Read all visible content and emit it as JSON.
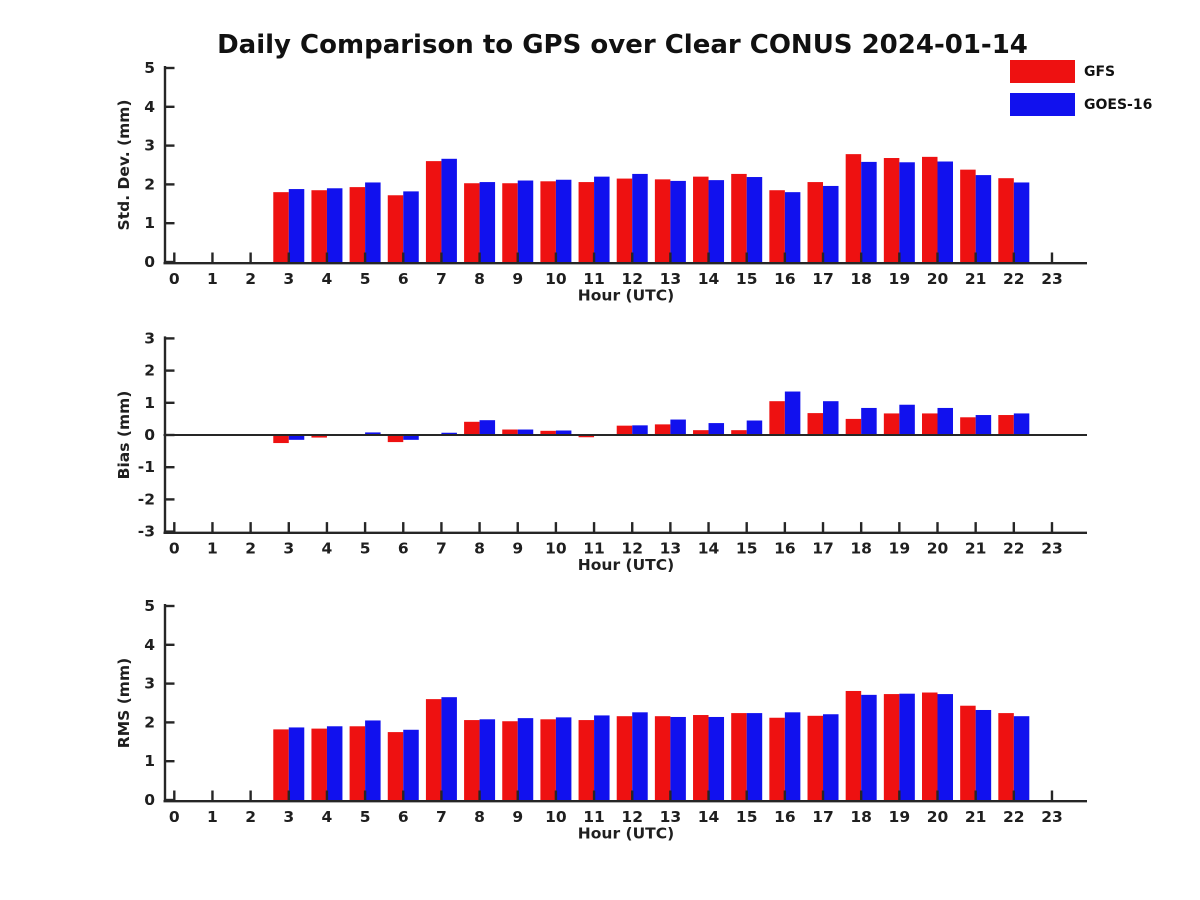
{
  "title": "Daily Comparison to GPS over Clear CONUS 2024-01-14",
  "legend": {
    "items": [
      {
        "label": "GFS",
        "color": "#ee1111"
      },
      {
        "label": "GOES-16",
        "color": "#1111ee"
      }
    ]
  },
  "colors": {
    "gfs": "#ee1111",
    "goes16": "#1111ee",
    "axis": "#262626",
    "text": "#111111"
  },
  "chart_data": [
    {
      "id": "std-dev",
      "type": "bar",
      "xlabel": "Hour (UTC)",
      "ylabel": "Std. Dev. (mm)",
      "ylim": [
        0,
        5
      ],
      "yticks": [
        0,
        1,
        2,
        3,
        4,
        5
      ],
      "x": [
        0,
        1,
        2,
        3,
        4,
        5,
        6,
        7,
        8,
        9,
        10,
        11,
        12,
        13,
        14,
        15,
        16,
        17,
        18,
        19,
        20,
        21,
        22,
        23
      ],
      "grid": false,
      "series": [
        {
          "name": "GFS",
          "color": "#ee1111",
          "values": [
            null,
            null,
            null,
            1.8,
            1.85,
            1.93,
            1.72,
            2.6,
            2.03,
            2.03,
            2.08,
            2.06,
            2.15,
            2.13,
            2.2,
            2.27,
            1.85,
            2.06,
            2.78,
            2.68,
            2.71,
            2.38,
            2.16,
            null
          ]
        },
        {
          "name": "GOES-16",
          "color": "#1111ee",
          "values": [
            null,
            null,
            null,
            1.88,
            1.9,
            2.05,
            1.82,
            2.66,
            2.06,
            2.1,
            2.12,
            2.2,
            2.27,
            2.09,
            2.11,
            2.19,
            1.8,
            1.96,
            2.58,
            2.57,
            2.59,
            2.24,
            2.05,
            null
          ]
        }
      ]
    },
    {
      "id": "bias",
      "type": "bar",
      "xlabel": "Hour (UTC)",
      "ylabel": "Bias (mm)",
      "ylim": [
        -3,
        3
      ],
      "yticks": [
        -3,
        -2,
        -1,
        0,
        1,
        2,
        3
      ],
      "zero_line": true,
      "x": [
        0,
        1,
        2,
        3,
        4,
        5,
        6,
        7,
        8,
        9,
        10,
        11,
        12,
        13,
        14,
        15,
        16,
        17,
        18,
        19,
        20,
        21,
        22,
        23
      ],
      "grid": false,
      "series": [
        {
          "name": "GFS",
          "color": "#ee1111",
          "values": [
            null,
            null,
            null,
            -0.25,
            -0.08,
            0.02,
            -0.22,
            0.02,
            0.41,
            0.17,
            0.13,
            -0.07,
            0.29,
            0.33,
            0.15,
            0.15,
            1.05,
            0.68,
            0.5,
            0.67,
            0.67,
            0.55,
            0.62,
            null
          ]
        },
        {
          "name": "GOES-16",
          "color": "#1111ee",
          "values": [
            null,
            null,
            null,
            -0.15,
            0.03,
            0.08,
            -0.15,
            0.07,
            0.46,
            0.17,
            0.14,
            0.01,
            0.3,
            0.48,
            0.37,
            0.45,
            1.35,
            1.05,
            0.84,
            0.94,
            0.84,
            0.62,
            0.67,
            null
          ]
        }
      ]
    },
    {
      "id": "rms",
      "type": "bar",
      "xlabel": "Hour (UTC)",
      "ylabel": "RMS (mm)",
      "ylim": [
        0,
        5
      ],
      "yticks": [
        0,
        1,
        2,
        3,
        4,
        5
      ],
      "x": [
        0,
        1,
        2,
        3,
        4,
        5,
        6,
        7,
        8,
        9,
        10,
        11,
        12,
        13,
        14,
        15,
        16,
        17,
        18,
        19,
        20,
        21,
        22,
        23
      ],
      "grid": false,
      "series": [
        {
          "name": "GFS",
          "color": "#ee1111",
          "values": [
            null,
            null,
            null,
            1.82,
            1.84,
            1.9,
            1.75,
            2.6,
            2.06,
            2.03,
            2.08,
            2.06,
            2.16,
            2.16,
            2.19,
            2.24,
            2.12,
            2.17,
            2.81,
            2.73,
            2.77,
            2.43,
            2.24,
            null
          ]
        },
        {
          "name": "GOES-16",
          "color": "#1111ee",
          "values": [
            null,
            null,
            null,
            1.87,
            1.9,
            2.05,
            1.81,
            2.65,
            2.08,
            2.11,
            2.13,
            2.18,
            2.26,
            2.14,
            2.14,
            2.24,
            2.26,
            2.21,
            2.71,
            2.74,
            2.73,
            2.32,
            2.16,
            null
          ]
        }
      ]
    }
  ]
}
